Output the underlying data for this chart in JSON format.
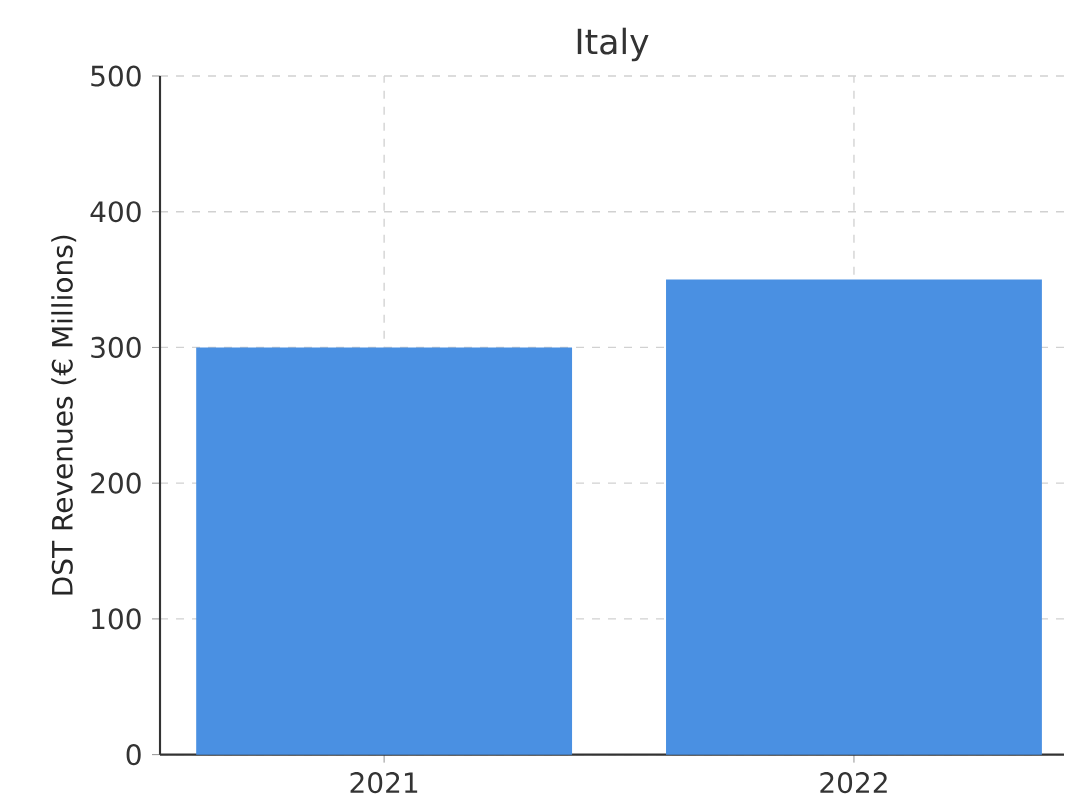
{
  "chart_data": {
    "type": "bar",
    "title": "Italy",
    "ylabel": "DST Revenues (€ Millions)",
    "categories": [
      "2021",
      "2022"
    ],
    "values": [
      300,
      350
    ],
    "color": "#4a90e2",
    "ylim": [
      0,
      500
    ],
    "yticks": [
      0,
      100,
      200,
      300,
      400,
      500
    ],
    "grid": true
  }
}
